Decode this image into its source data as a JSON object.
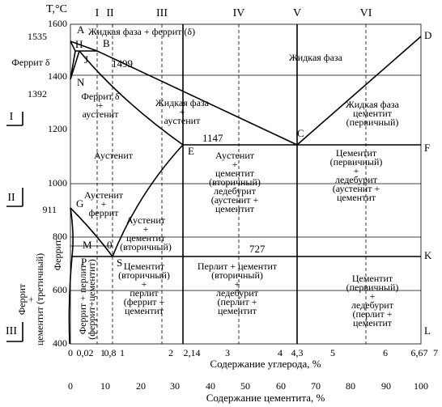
{
  "y_axis": {
    "title": "T,°C",
    "ticks": [
      "1600",
      "1535",
      "1400",
      "1392",
      "1200",
      "1000",
      "911",
      "800",
      "600",
      "400"
    ]
  },
  "x_axis_carbon": {
    "label": "Содержание углерода, %",
    "ticks": [
      "0",
      "0,02",
      "1",
      "0,8",
      "1",
      "2",
      "2,14",
      "3",
      "4",
      "4,3",
      "5",
      "6",
      "6,67",
      "7"
    ]
  },
  "x_axis_cementite": {
    "label": "Содержание цементита, %",
    "ticks": [
      "0",
      "10",
      "20",
      "30",
      "40",
      "50",
      "60",
      "70",
      "80",
      "90",
      "100"
    ]
  },
  "zones_top": [
    "I",
    "II",
    "III",
    "IV",
    "V",
    "VI"
  ],
  "zones_left": [
    "I",
    "II",
    "III"
  ],
  "points": [
    "A",
    "B",
    "H",
    "J",
    "N",
    "G",
    "E",
    "C",
    "D",
    "F",
    "K",
    "L",
    "S",
    "P",
    "M",
    "0"
  ],
  "temperatures": [
    "1499",
    "1147",
    "727"
  ],
  "regions": [
    {
      "lines": [
        "Жидкая фаза + феррит (δ)"
      ]
    },
    {
      "lines": [
        "Жидкая фаза"
      ]
    },
    {
      "lines": [
        "Феррит δ"
      ]
    },
    {
      "lines": [
        "Феррит δ",
        "+",
        "аустенит"
      ]
    },
    {
      "lines": [
        "Жидкая фаза",
        "+",
        "аустенит"
      ]
    },
    {
      "lines": [
        "Жидкая фаза",
        "цементит",
        "(первичный)"
      ]
    },
    {
      "lines": [
        "Аустенит"
      ]
    },
    {
      "lines": [
        "Аустенит",
        "+",
        "цементит",
        "(вторичный)",
        "ледебурит",
        "(аустенит +",
        "цементит"
      ]
    },
    {
      "lines": [
        "Цементит",
        "(первичный)",
        "+",
        "ледебурит",
        "(аустенит +",
        "цементит"
      ]
    },
    {
      "lines": [
        "Аустенит",
        "+",
        "феррит"
      ]
    },
    {
      "lines": [
        "Аустенит",
        "+",
        "цементит",
        "(вторичный)"
      ]
    },
    {
      "lines": [
        "Цементит",
        "(вторичный)",
        "+",
        "перлит",
        "(феррит +",
        "цементит"
      ]
    },
    {
      "lines": [
        "Перлит + цементит",
        "(вторичный)",
        "+",
        "ледебурит",
        "(перлит +",
        "цементит"
      ]
    },
    {
      "lines": [
        "Цементит",
        "(первичный)",
        "+",
        "ледебурит",
        "(перлит +",
        "цементит"
      ]
    },
    {
      "lines": [
        "Феррит"
      ]
    },
    {
      "lines": [
        "Феррит",
        "+",
        "цементит (третичный)"
      ]
    },
    {
      "lines": [
        "Феррит + перлит",
        "(феррит+цементит)"
      ]
    }
  ]
}
